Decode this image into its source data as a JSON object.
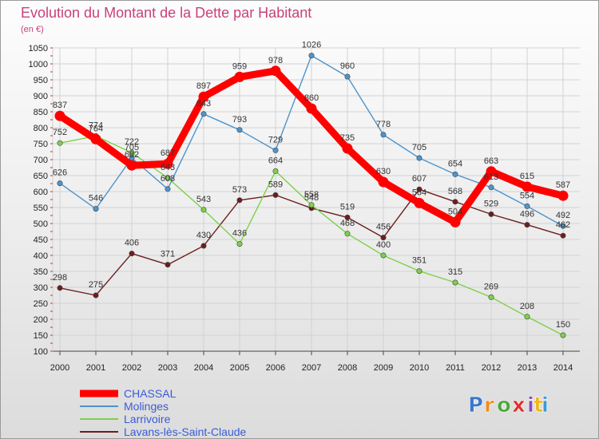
{
  "chart_data": {
    "type": "line",
    "title": "Evolution du Montant de la Dette par Habitant",
    "subtitle": "(en €)",
    "x": [
      "2000",
      "2001",
      "2002",
      "2003",
      "2004",
      "2005",
      "2006",
      "2007",
      "2008",
      "2009",
      "2010",
      "2011",
      "2012",
      "2013",
      "2014"
    ],
    "ylim": [
      100,
      1050
    ],
    "yticks": [
      100,
      150,
      200,
      250,
      300,
      350,
      400,
      450,
      500,
      550,
      600,
      650,
      700,
      750,
      800,
      850,
      900,
      950,
      1000,
      1050
    ],
    "grid": true,
    "legend_position": "bottom-left",
    "series": [
      {
        "name": "CHASSAL",
        "color": "#ff0000",
        "values": [
          837,
          764,
          682,
          687,
          897,
          959,
          978,
          860,
          735,
          630,
          564,
          504,
          663,
          615,
          587
        ]
      },
      {
        "name": "Molinges",
        "color": "#4d94cc",
        "values": [
          626,
          546,
          705,
          608,
          843,
          793,
          729,
          1026,
          960,
          778,
          705,
          654,
          613,
          554,
          492
        ]
      },
      {
        "name": "Larrivoire",
        "color": "#7ed04a",
        "values": [
          752,
          774,
          722,
          643,
          543,
          436,
          664,
          558,
          468,
          400,
          351,
          315,
          269,
          208,
          150
        ]
      },
      {
        "name": "Lavans-lès-Saint-Claude",
        "color": "#6b1e1e",
        "values": [
          298,
          275,
          406,
          371,
          430,
          573,
          589,
          548,
          519,
          456,
          607,
          568,
          529,
          496,
          462
        ]
      }
    ]
  },
  "logo": {
    "letters": [
      "P",
      "r",
      "o",
      "x",
      "i",
      "t",
      "i"
    ],
    "colors": [
      "#3a78c8",
      "#f08c1a",
      "#4aa83a",
      "#e0302a",
      "#8a4ab8",
      "#f0b81a",
      "#3a98d8"
    ]
  }
}
